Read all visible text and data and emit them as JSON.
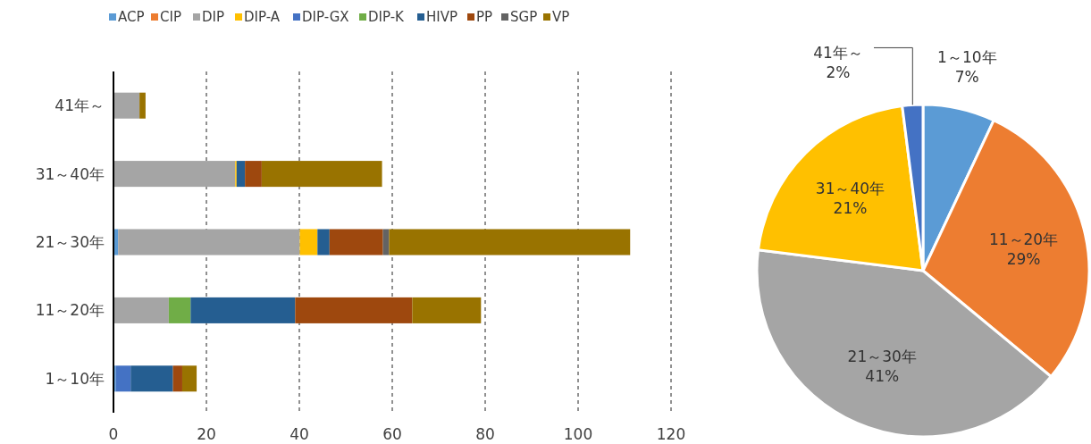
{
  "chart_data": [
    {
      "type": "bar",
      "orientation": "horizontal",
      "stacked": true,
      "categories": [
        "41年～",
        "31～40年",
        "21～30年",
        "11～20年",
        "1～10年"
      ],
      "series": [
        {
          "name": "ACP",
          "color": "#5b9bd5",
          "values": [
            null,
            null,
            1.0,
            null,
            0.5
          ]
        },
        {
          "name": "CIP",
          "color": "#ed7d31",
          "values": [
            null,
            null,
            null,
            null,
            null
          ]
        },
        {
          "name": "DIP",
          "color": "#a5a5a5",
          "values": [
            5.6,
            26.2,
            39.1,
            11.9,
            null
          ]
        },
        {
          "name": "DIP-A",
          "color": "#ffc000",
          "values": [
            null,
            0.3,
            3.8,
            null,
            null
          ]
        },
        {
          "name": "DIP-GX",
          "color": "#4472c4",
          "values": [
            null,
            null,
            null,
            null,
            3.2
          ]
        },
        {
          "name": "DIP-K",
          "color": "#70ad47",
          "values": [
            null,
            null,
            null,
            4.7,
            null
          ]
        },
        {
          "name": "HIVP",
          "color": "#255e91",
          "values": [
            null,
            1.8,
            2.6,
            22.5,
            9.1
          ]
        },
        {
          "name": "PP",
          "color": "#9e480e",
          "values": [
            null,
            3.6,
            11.5,
            25.2,
            2.0
          ]
        },
        {
          "name": "SGP",
          "color": "#636363",
          "values": [
            null,
            null,
            1.3,
            null,
            null
          ]
        },
        {
          "name": "VP",
          "color": "#997300",
          "values": [
            1.3,
            25.9,
            51.9,
            14.8,
            3.1
          ]
        }
      ],
      "xlim": [
        0,
        120
      ],
      "xticks": [
        0,
        20,
        40,
        60,
        80,
        100,
        120
      ],
      "grid": "x",
      "line_style": "dashed",
      "legend": "top"
    },
    {
      "type": "pie",
      "categories": [
        "1～10年",
        "11～20年",
        "21～30年",
        "31～40年",
        "41年～"
      ],
      "values": [
        7,
        29,
        41,
        21,
        2
      ],
      "colors": [
        "#5b9bd5",
        "#ed7d31",
        "#a5a5a5",
        "#ffc000",
        "#4472c4"
      ],
      "value_labels": [
        "7%",
        "29%",
        "41%",
        "21%",
        "2%"
      ]
    }
  ]
}
